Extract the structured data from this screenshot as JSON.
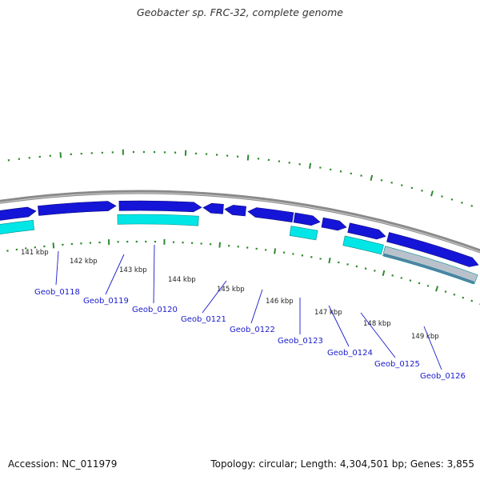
{
  "title": "Geobacter sp. FRC-32, complete genome",
  "footer": {
    "accession": "Accession: NC_011979",
    "summary": "Topology: circular; Length: 4,304,501 bp; Genes: 3,855"
  },
  "colors": {
    "forward_gene": "#1515d8",
    "reverse_gene": "#00e6e6",
    "backbone": "#8a8a8a",
    "tick": "#2e8b2e",
    "label": "#1a1acc"
  },
  "kbp_labels": [
    "141 kbp",
    "142 kbp",
    "143 kbp",
    "144 kbp",
    "145 kbp",
    "146 kbp",
    "147 kbp",
    "148 kbp",
    "149 kbp"
  ],
  "genes": [
    "Geob_0118",
    "Geob_0119",
    "Geob_0120",
    "Geob_0121",
    "Geob_0122",
    "Geob_0123",
    "Geob_0124",
    "Geob_0125",
    "Geob_0126"
  ]
}
